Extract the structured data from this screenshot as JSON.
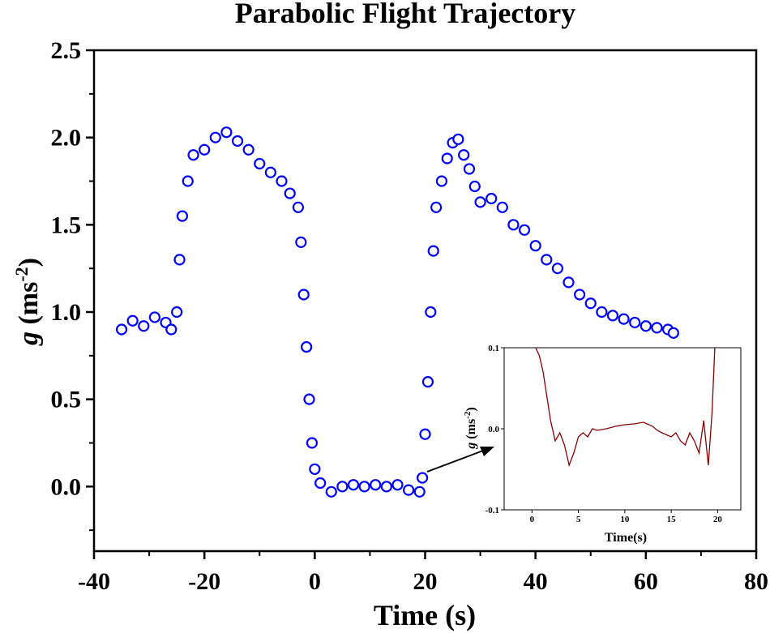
{
  "chart_data": {
    "type": "scatter",
    "title": "Parabolic Flight Trajectory",
    "xlabel": "Time (s)",
    "ylabel": {
      "main": "g",
      "unit_open": " (ms",
      "unit_sup": "-2",
      "unit_close": ")"
    },
    "xlim": [
      -40,
      80
    ],
    "ylim": [
      -0.37,
      2.5
    ],
    "xticks": [
      "-40",
      "-20",
      "0",
      "20",
      "40",
      "60",
      "80"
    ],
    "yticks": [
      "0.0",
      "0.5",
      "1.0",
      "1.5",
      "2.0",
      "2.5"
    ],
    "series_color": "#0000ff",
    "points": [
      [
        -35,
        0.9
      ],
      [
        -33,
        0.95
      ],
      [
        -31,
        0.92
      ],
      [
        -29,
        0.97
      ],
      [
        -27,
        0.94
      ],
      [
        -26,
        0.9
      ],
      [
        -25,
        1.0
      ],
      [
        -24.5,
        1.3
      ],
      [
        -24,
        1.55
      ],
      [
        -23,
        1.75
      ],
      [
        -22,
        1.9
      ],
      [
        -20,
        1.93
      ],
      [
        -18,
        2.0
      ],
      [
        -16,
        2.03
      ],
      [
        -14,
        1.98
      ],
      [
        -12,
        1.93
      ],
      [
        -10,
        1.85
      ],
      [
        -8,
        1.8
      ],
      [
        -6,
        1.75
      ],
      [
        -4.5,
        1.68
      ],
      [
        -3,
        1.6
      ],
      [
        -2.5,
        1.4
      ],
      [
        -2,
        1.1
      ],
      [
        -1.5,
        0.8
      ],
      [
        -1,
        0.5
      ],
      [
        -0.5,
        0.25
      ],
      [
        0,
        0.1
      ],
      [
        1,
        0.02
      ],
      [
        3,
        -0.03
      ],
      [
        5,
        0.0
      ],
      [
        7,
        0.01
      ],
      [
        9,
        0.0
      ],
      [
        11,
        0.01
      ],
      [
        13,
        0.0
      ],
      [
        15,
        0.01
      ],
      [
        17,
        -0.02
      ],
      [
        19,
        -0.03
      ],
      [
        19.5,
        0.05
      ],
      [
        20,
        0.3
      ],
      [
        20.5,
        0.6
      ],
      [
        21,
        1.0
      ],
      [
        21.5,
        1.35
      ],
      [
        22,
        1.6
      ],
      [
        23,
        1.75
      ],
      [
        24,
        1.88
      ],
      [
        25,
        1.97
      ],
      [
        26,
        1.99
      ],
      [
        27,
        1.9
      ],
      [
        28,
        1.82
      ],
      [
        29,
        1.72
      ],
      [
        30,
        1.63
      ],
      [
        32,
        1.65
      ],
      [
        34,
        1.6
      ],
      [
        36,
        1.5
      ],
      [
        38,
        1.47
      ],
      [
        40,
        1.38
      ],
      [
        42,
        1.3
      ],
      [
        44,
        1.25
      ],
      [
        46,
        1.17
      ],
      [
        48,
        1.1
      ],
      [
        50,
        1.05
      ],
      [
        52,
        1.0
      ],
      [
        54,
        0.98
      ],
      [
        56,
        0.96
      ],
      [
        58,
        0.94
      ],
      [
        60,
        0.92
      ],
      [
        62,
        0.91
      ],
      [
        64,
        0.9
      ],
      [
        65,
        0.88
      ]
    ],
    "inset": {
      "type": "line",
      "xlabel": "Time(s)",
      "ylabel": {
        "main": "g",
        "unit_open": " (ms",
        "unit_sup": "-2",
        "unit_close": ")"
      },
      "xlim": [
        -3,
        22.5
      ],
      "ylim": [
        -0.1,
        0.1
      ],
      "xticks": [
        "0",
        "5",
        "10",
        "15",
        "20"
      ],
      "yticks": [
        "0.1",
        "0.0",
        "-0.1"
      ],
      "series_color": "#8b0000",
      "points": [
        [
          0.4,
          0.1
        ],
        [
          0.8,
          0.09
        ],
        [
          1.2,
          0.07
        ],
        [
          1.6,
          0.04
        ],
        [
          2.0,
          0.01
        ],
        [
          2.5,
          -0.015
        ],
        [
          3.0,
          -0.005
        ],
        [
          3.5,
          -0.02
        ],
        [
          4.0,
          -0.045
        ],
        [
          4.5,
          -0.03
        ],
        [
          5.0,
          -0.01
        ],
        [
          5.5,
          -0.005
        ],
        [
          6.0,
          -0.01
        ],
        [
          6.5,
          0.0
        ],
        [
          7.0,
          -0.002
        ],
        [
          8.0,
          0.0
        ],
        [
          9.0,
          0.003
        ],
        [
          10.0,
          0.005
        ],
        [
          11.0,
          0.006
        ],
        [
          12.0,
          0.008
        ],
        [
          13.0,
          0.003
        ],
        [
          13.5,
          -0.002
        ],
        [
          14.0,
          -0.005
        ],
        [
          15.0,
          -0.01
        ],
        [
          15.5,
          -0.005
        ],
        [
          16.0,
          -0.015
        ],
        [
          16.5,
          -0.02
        ],
        [
          17.0,
          -0.005
        ],
        [
          17.5,
          -0.015
        ],
        [
          18.0,
          -0.03
        ],
        [
          18.5,
          0.01
        ],
        [
          19.0,
          -0.045
        ],
        [
          19.4,
          0.02
        ],
        [
          19.7,
          0.1
        ]
      ]
    }
  }
}
